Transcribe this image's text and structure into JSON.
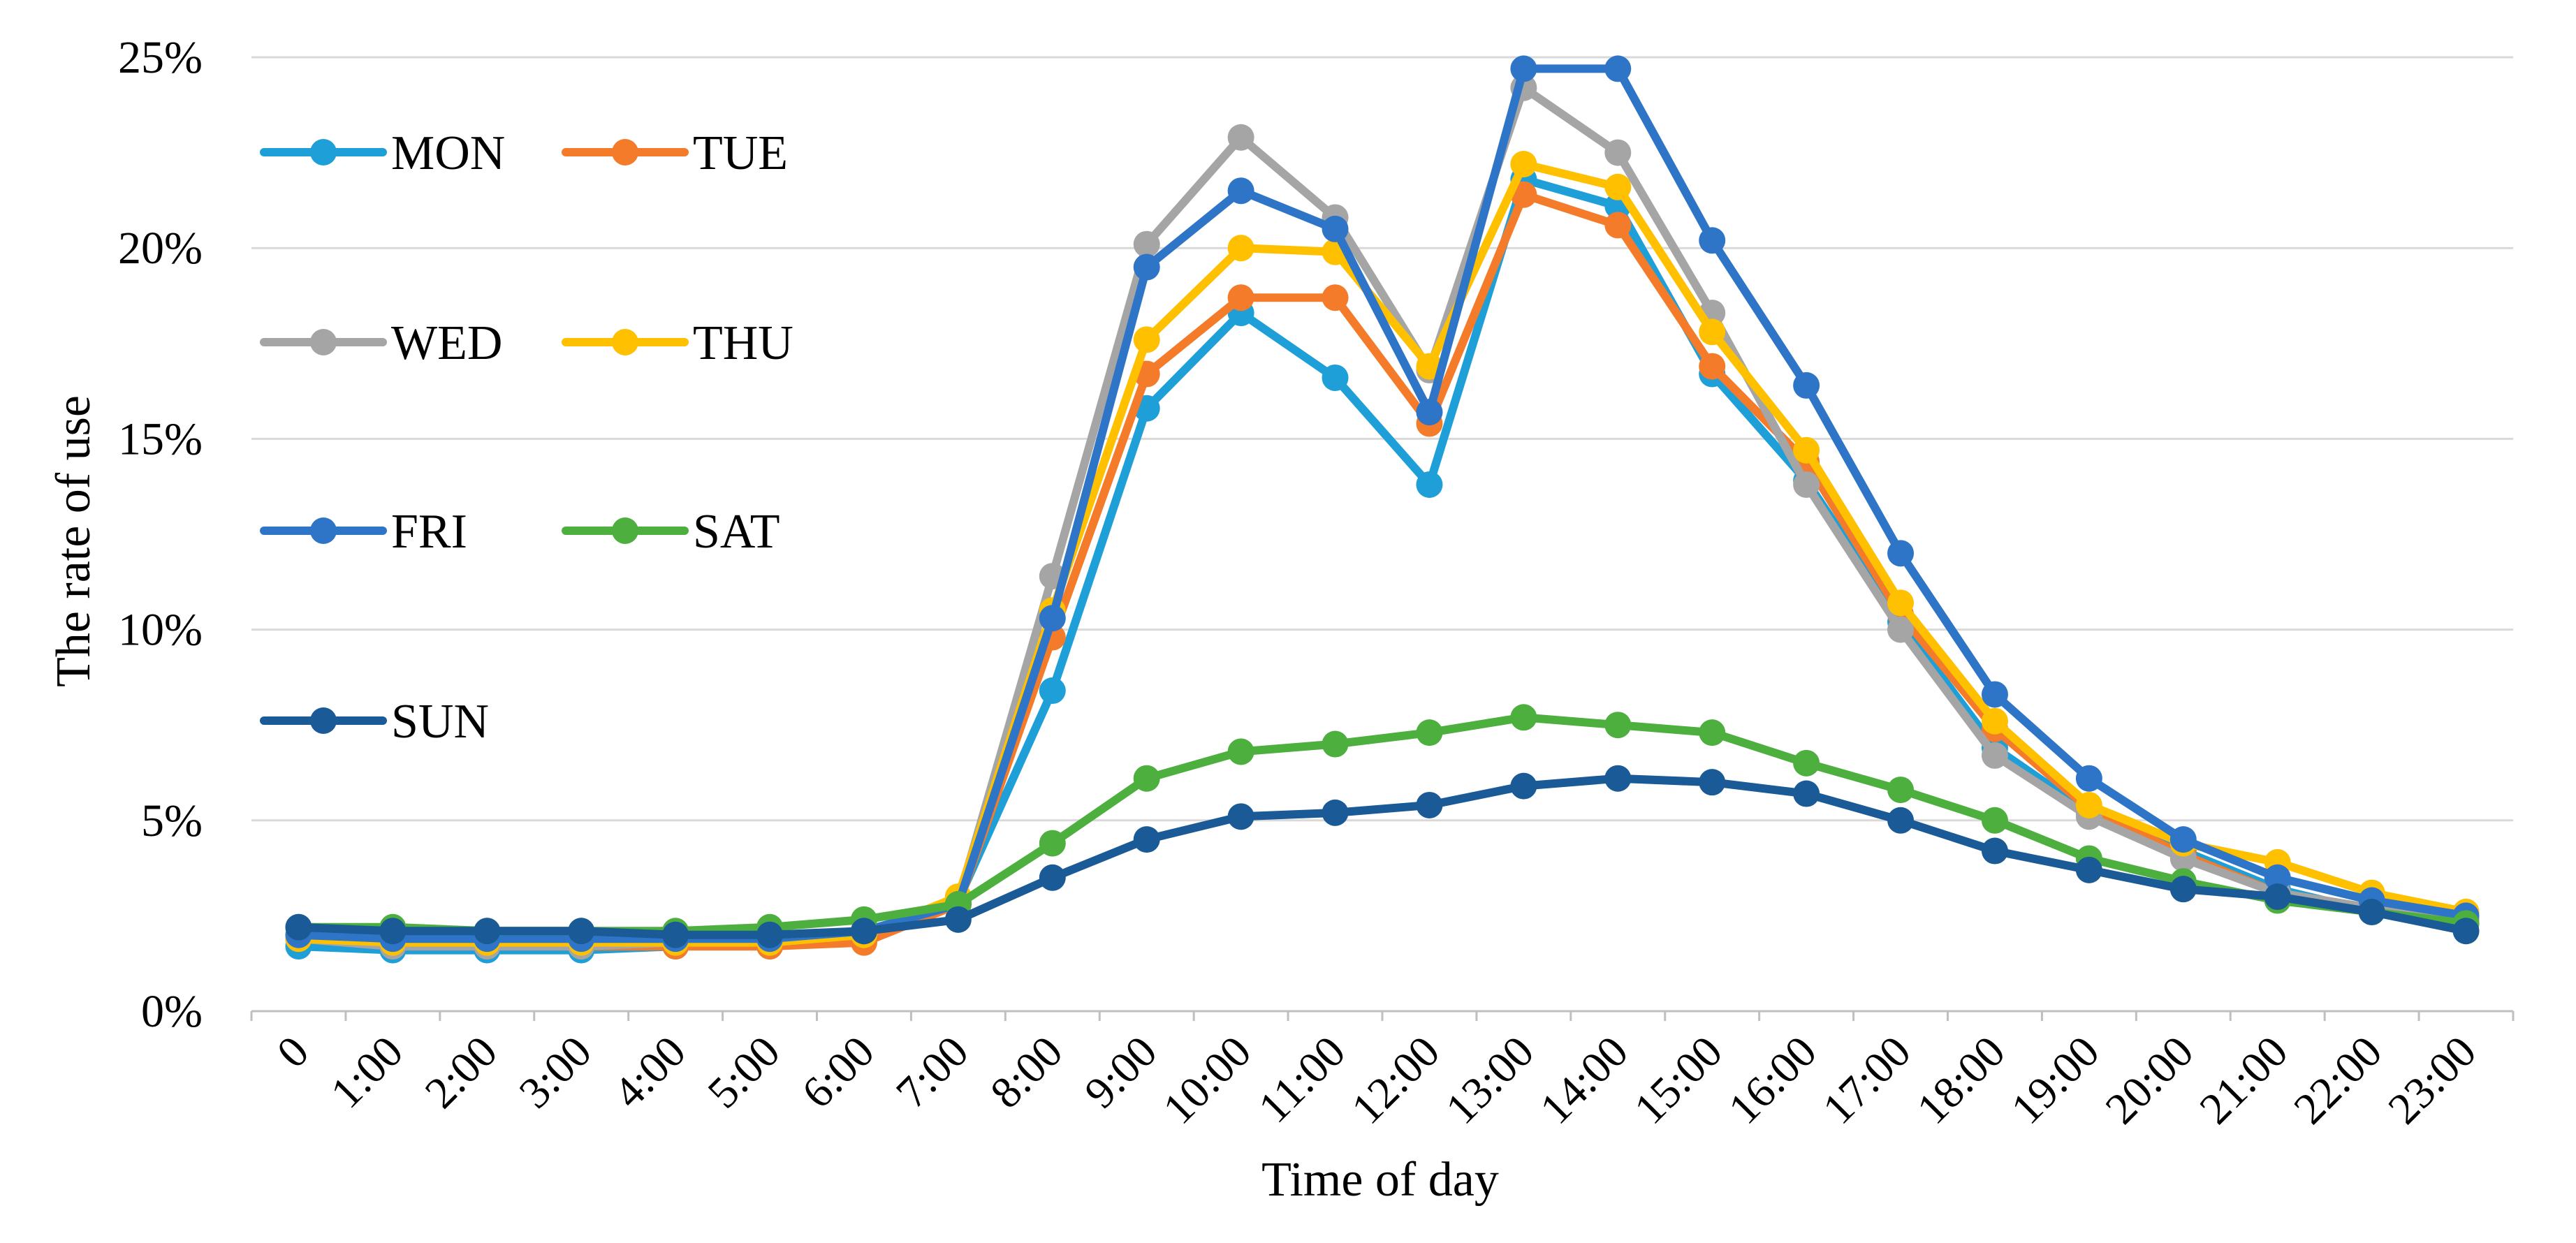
{
  "chart_data": {
    "type": "line",
    "title": "",
    "xlabel": "Time of day",
    "ylabel": "The rate of use",
    "ylim": [
      0,
      25
    ],
    "yticks": [
      "0%",
      "5%",
      "10%",
      "15%",
      "20%",
      "25%"
    ],
    "yticks_values": [
      0,
      5,
      10,
      15,
      20,
      25
    ],
    "categories": [
      "0",
      "1:00",
      "2:00",
      "3:00",
      "4:00",
      "5:00",
      "6:00",
      "7:00",
      "8:00",
      "9:00",
      "10:00",
      "11:00",
      "12:00",
      "13:00",
      "14:00",
      "15:00",
      "16:00",
      "17:00",
      "18:00",
      "19:00",
      "20:00",
      "21:00",
      "22:00",
      "23:00"
    ],
    "grid": true,
    "legend_position": "top-left",
    "series": [
      {
        "name": "MON",
        "color": "#1F9FD8",
        "values": [
          1.7,
          1.6,
          1.6,
          1.6,
          1.7,
          1.7,
          1.9,
          2.9,
          8.4,
          15.8,
          18.3,
          16.6,
          13.8,
          21.8,
          21.1,
          16.7,
          13.9,
          10.2,
          6.9,
          5.2,
          4.2,
          3.2,
          2.6,
          2.3
        ]
      },
      {
        "name": "TUE",
        "color": "#F47B2A",
        "values": [
          1.9,
          1.7,
          1.7,
          1.7,
          1.7,
          1.7,
          1.8,
          2.8,
          9.8,
          16.7,
          18.7,
          18.7,
          15.4,
          21.4,
          20.6,
          16.9,
          14.4,
          10.4,
          7.4,
          5.3,
          4.1,
          3.1,
          2.7,
          2.4
        ]
      },
      {
        "name": "WED",
        "color": "#A5A5A5",
        "values": [
          1.9,
          1.7,
          1.7,
          1.7,
          1.8,
          1.8,
          2.0,
          2.9,
          11.4,
          20.1,
          22.9,
          20.8,
          16.8,
          24.2,
          22.5,
          18.3,
          13.8,
          10.0,
          6.7,
          5.1,
          4.0,
          3.1,
          2.7,
          2.3
        ]
      },
      {
        "name": "THU",
        "color": "#FFC000",
        "values": [
          1.9,
          1.8,
          1.8,
          1.8,
          1.8,
          1.8,
          2.0,
          3.0,
          10.5,
          17.6,
          20.0,
          19.9,
          16.9,
          22.2,
          21.6,
          17.8,
          14.7,
          10.7,
          7.6,
          5.4,
          4.4,
          3.9,
          3.1,
          2.6
        ]
      },
      {
        "name": "FRI",
        "color": "#2E75C8",
        "values": [
          2.0,
          1.9,
          1.9,
          1.9,
          1.9,
          1.9,
          2.1,
          2.8,
          10.3,
          19.5,
          21.5,
          20.5,
          15.7,
          24.7,
          24.7,
          20.2,
          16.4,
          12.0,
          8.3,
          6.1,
          4.5,
          3.5,
          2.9,
          2.5
        ]
      },
      {
        "name": "SAT",
        "color": "#4CAF3E",
        "values": [
          2.2,
          2.2,
          2.1,
          2.1,
          2.1,
          2.2,
          2.4,
          2.8,
          4.4,
          6.1,
          6.8,
          7.0,
          7.3,
          7.7,
          7.5,
          7.3,
          6.5,
          5.8,
          5.0,
          4.0,
          3.4,
          2.9,
          2.6,
          2.3
        ]
      },
      {
        "name": "SUN",
        "color": "#1A5A96",
        "values": [
          2.2,
          2.1,
          2.1,
          2.1,
          2.0,
          2.0,
          2.1,
          2.4,
          3.5,
          4.5,
          5.1,
          5.2,
          5.4,
          5.9,
          6.1,
          6.0,
          5.7,
          5.0,
          4.2,
          3.7,
          3.2,
          3.0,
          2.6,
          2.1
        ]
      }
    ]
  }
}
